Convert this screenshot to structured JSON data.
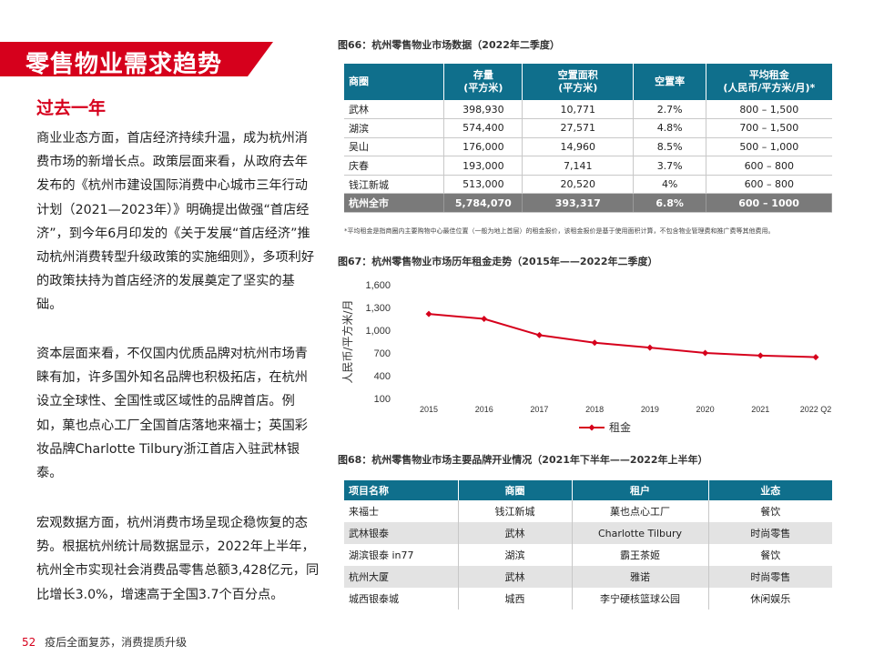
{
  "page": {
    "title": "零售物业需求趋势",
    "subtitle": "过去一年",
    "paragraphs": [
      "商业业态方面，首店经济持续升温，成为杭州消费市场的新增长点。政策层面来看，从政府去年发布的《杭州市建设国际消费中心城市三年行动计划（2021—2023年）》明确提出做强“首店经济”，到今年6月印发的《关于发展“首店经济”推动杭州消费转型升级政策的实施细则》，多项利好的政策扶持为首店经济的发展奠定了坚实的基础。",
      "资本层面来看，不仅国内优质品牌对杭州市场青睐有加，许多国外知名品牌也积极拓店，在杭州设立全球性、全国性或区域性的品牌首店。例如，菓也点心工厂全国首店落地来福士；英国彩妆品牌Charlotte Tilbury浙江首店入驻武林银泰。",
      "宏观数据方面，杭州消费市场呈现企稳恢复的态势。根据杭州统计局数据显示，2022年上半年，杭州全市实现社会消费品零售总额3,428亿元，同比增长3.0%，增速高于全国3.7个百分点。"
    ],
    "page_number": "52",
    "footer_text": "疫后全面复苏，消费提质升级",
    "accent_color": "#d6001c",
    "table_header_color": "#0f6f8c"
  },
  "fig66": {
    "title": "图66：杭州零售物业市场数据（2022年二季度）",
    "headers": [
      "商圈",
      "存量\n(平方米)",
      "空置面积\n(平方米)",
      "空置率",
      "平均租金\n(人民币/平方米/月)*"
    ],
    "rows": [
      [
        "武林",
        "398,930",
        "10,771",
        "2.7%",
        "800 – 1,500"
      ],
      [
        "湖滨",
        "574,400",
        "27,571",
        "4.8%",
        "700 – 1,500"
      ],
      [
        "吴山",
        "176,000",
        "14,960",
        "8.5%",
        "500 – 1,000"
      ],
      [
        "庆春",
        "193,000",
        "7,141",
        "3.7%",
        "600 – 800"
      ],
      [
        "钱江新城",
        "513,000",
        "20,520",
        "4%",
        "600 – 800"
      ]
    ],
    "total": [
      "杭州全市",
      "5,784,070",
      "393,317",
      "6.8%",
      "600 – 1000"
    ],
    "footnote": "*平均租金是指商圈内主要购物中心最佳位置（一般为地上首层）的租金报价，该租金报价是基于使用面积计算，不包含物业管理费和推广费等其他费用。"
  },
  "fig67": {
    "title": "图67：杭州零售物业市场历年租金走势（2015年——2022年二季度）"
  },
  "chart_data": {
    "type": "line",
    "title": "",
    "xlabel": "",
    "ylabel": "人民币/平方米/月",
    "categories": [
      "2015",
      "2016",
      "2017",
      "2018",
      "2019",
      "2020",
      "2021",
      "2022 Q2"
    ],
    "series": [
      {
        "name": "租金",
        "values": [
          1215,
          1150,
          935,
          835,
          770,
          700,
          665,
          645
        ]
      }
    ],
    "ylim": [
      100,
      1600
    ],
    "yticks": [
      "1,600",
      "1,300",
      "1,000",
      "700",
      "400",
      "100"
    ],
    "ytick_values": [
      1600,
      1300,
      1000,
      700,
      400,
      100
    ],
    "legend_position": "bottom",
    "grid": false,
    "series_color": "#d6001c"
  },
  "fig68": {
    "title": "图68：杭州零售物业市场主要品牌开业情况（2021年下半年——2022年上半年）",
    "headers": [
      "项目名称",
      "商圈",
      "租户",
      "业态"
    ],
    "rows": [
      [
        "来福士",
        "钱江新城",
        "菓也点心工厂",
        "餐饮"
      ],
      [
        "武林银泰",
        "武林",
        "Charlotte Tilbury",
        "时尚零售"
      ],
      [
        "湖滨银泰 in77",
        "湖滨",
        "霸王茶姬",
        "餐饮"
      ],
      [
        "杭州大厦",
        "武林",
        "雅诺",
        "时尚零售"
      ],
      [
        "城西银泰城",
        "城西",
        "李宁硬核篮球公园",
        "休闲娱乐"
      ]
    ]
  }
}
